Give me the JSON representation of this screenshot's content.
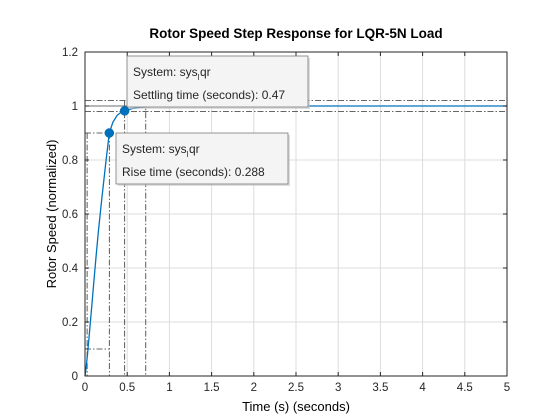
{
  "chart_data": {
    "type": "line",
    "title": "Rotor Speed Step Response for LQR-5N Load",
    "xlabel": "Time (s) (seconds)",
    "ylabel": "Rotor Speed (normalized)",
    "xlim": [
      0,
      5
    ],
    "ylim": [
      0,
      1.2
    ],
    "xticks": [
      0,
      0.5,
      1,
      1.5,
      2,
      2.5,
      3,
      3.5,
      4,
      4.5,
      5
    ],
    "yticks": [
      0,
      0.2,
      0.4,
      0.6,
      0.8,
      1,
      1.2
    ],
    "xtick_labels": [
      "0",
      "0.5",
      "1",
      "1.5",
      "2",
      "2.5",
      "3",
      "3.5",
      "4",
      "4.5",
      "5"
    ],
    "ytick_labels": [
      "0",
      "0.2",
      "0.4",
      "0.6",
      "0.8",
      "1",
      "1.2"
    ],
    "grid": true,
    "series": [
      {
        "color": "#0072BD",
        "x": [
          0,
          0.01,
          0.03,
          0.05,
          0.08,
          0.1,
          0.13,
          0.16,
          0.2,
          0.25,
          0.288,
          0.33,
          0.38,
          0.42,
          0.47,
          0.55,
          0.65,
          0.8,
          1.0,
          1.5,
          2,
          3,
          4,
          5
        ],
        "y": [
          0,
          0.02,
          0.08,
          0.15,
          0.26,
          0.33,
          0.44,
          0.54,
          0.66,
          0.8,
          0.9,
          0.94,
          0.965,
          0.975,
          0.982,
          0.99,
          0.995,
          0.998,
          1.0,
          1.0,
          1.0,
          1.0,
          1.0,
          1.0
        ]
      }
    ],
    "reference_lines": {
      "steady_state": 1.0,
      "settling_band": [
        0.98,
        1.02
      ],
      "rise_levels": [
        0.1,
        0.9
      ],
      "rise_times": [
        0.025,
        0.288
      ],
      "settling_time_lines": [
        0.47,
        0.72
      ]
    },
    "datatips": [
      {
        "x": 0.47,
        "y": 0.982,
        "system_label": "System: sys",
        "system_sub": "l",
        "system_suffix": "qr",
        "metric_label": "Settling time (seconds): 0.47"
      },
      {
        "x": 0.288,
        "y": 0.9,
        "system_label": "System: sys",
        "system_sub": "l",
        "system_suffix": "qr",
        "metric_label": "Rise time (seconds): 0.288"
      }
    ]
  }
}
